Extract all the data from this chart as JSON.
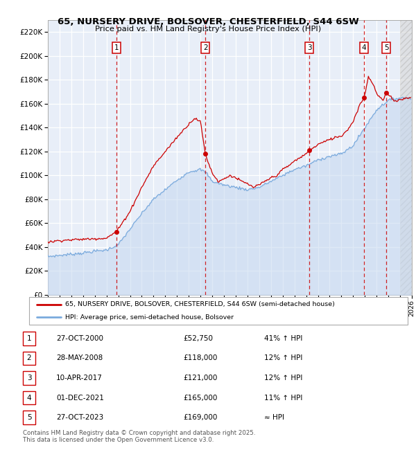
{
  "title_line1": "65, NURSERY DRIVE, BOLSOVER, CHESTERFIELD, S44 6SW",
  "title_line2": "Price paid vs. HM Land Registry's House Price Index (HPI)",
  "sales": [
    {
      "num": 1,
      "date": "27-OCT-2000",
      "price": 52750,
      "hpi_rel": "41% ↑ HPI",
      "date_num": 2000.83
    },
    {
      "num": 2,
      "date": "28-MAY-2008",
      "price": 118000,
      "hpi_rel": "12% ↑ HPI",
      "date_num": 2008.41
    },
    {
      "num": 3,
      "date": "10-APR-2017",
      "price": 121000,
      "hpi_rel": "12% ↑ HPI",
      "date_num": 2017.27
    },
    {
      "num": 4,
      "date": "01-DEC-2021",
      "price": 165000,
      "hpi_rel": "11% ↑ HPI",
      "date_num": 2021.92
    },
    {
      "num": 5,
      "date": "27-OCT-2023",
      "price": 169000,
      "hpi_rel": "≈ HPI",
      "date_num": 2023.83
    }
  ],
  "legend_line1": "65, NURSERY DRIVE, BOLSOVER, CHESTERFIELD, S44 6SW (semi-detached house)",
  "legend_line2": "HPI: Average price, semi-detached house, Bolsover",
  "table_rows": [
    [
      "1",
      "27-OCT-2000",
      "£52,750",
      "41% ↑ HPI"
    ],
    [
      "2",
      "28-MAY-2008",
      "£118,000",
      "12% ↑ HPI"
    ],
    [
      "3",
      "10-APR-2017",
      "£121,000",
      "12% ↑ HPI"
    ],
    [
      "4",
      "01-DEC-2021",
      "£165,000",
      "11% ↑ HPI"
    ],
    [
      "5",
      "27-OCT-2023",
      "£169,000",
      "≈ HPI"
    ]
  ],
  "footer": "Contains HM Land Registry data © Crown copyright and database right 2025.\nThis data is licensed under the Open Government Licence v3.0.",
  "ylim": [
    0,
    230000
  ],
  "xlim": [
    1995,
    2026
  ],
  "yticks": [
    0,
    20000,
    40000,
    60000,
    80000,
    100000,
    120000,
    140000,
    160000,
    180000,
    200000,
    220000
  ],
  "ytick_labels": [
    "£0",
    "£20K",
    "£40K",
    "£60K",
    "£80K",
    "£100K",
    "£120K",
    "£140K",
    "£160K",
    "£180K",
    "£200K",
    "£220K"
  ],
  "plot_bg_color": "#e8eef8",
  "red_color": "#cc0000",
  "blue_color": "#7aaadd",
  "blue_fill_color": "#c5d8f0",
  "hatch_start": 2025.0,
  "sale_marker_ybox": 205000
}
